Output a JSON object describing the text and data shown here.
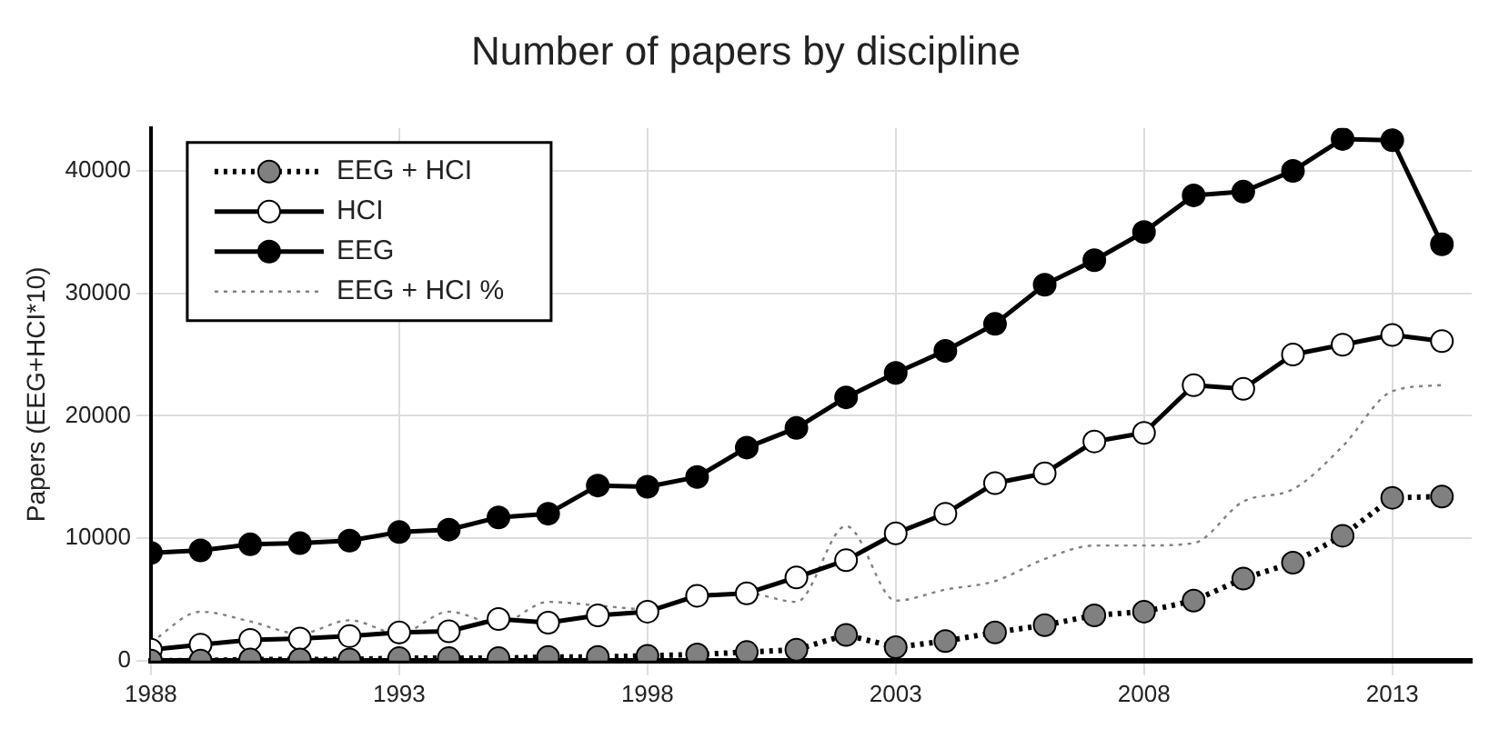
{
  "chart_data": {
    "type": "line",
    "title": "Number of papers by discipline",
    "ylabel": "Papers (EEG+HCI*10)",
    "x": [
      1988,
      1989,
      1990,
      1991,
      1992,
      1993,
      1994,
      1995,
      1996,
      1997,
      1998,
      1999,
      2000,
      2001,
      2002,
      2003,
      2004,
      2005,
      2006,
      2007,
      2008,
      2009,
      2010,
      2011,
      2012,
      2013,
      2014
    ],
    "series": [
      {
        "name": "EEG + HCI",
        "color": "#808080",
        "marker": "circle",
        "line_style": "dotted",
        "values": [
          0,
          0,
          100,
          100,
          100,
          200,
          200,
          200,
          300,
          300,
          400,
          500,
          700,
          900,
          2100,
          1100,
          1600,
          2300,
          2900,
          3700,
          4000,
          4900,
          6700,
          8000,
          10200,
          13300,
          13400
        ]
      },
      {
        "name": "HCI",
        "color": "#ffffff",
        "marker": "circle",
        "line_style": "solid",
        "values": [
          900,
          1300,
          1700,
          1800,
          2000,
          2300,
          2400,
          3400,
          3100,
          3700,
          4000,
          5300,
          5500,
          6800,
          8200,
          10400,
          12000,
          14500,
          15300,
          17900,
          18600,
          22500,
          22200,
          25000,
          25800,
          26600,
          26100
        ]
      },
      {
        "name": "EEG",
        "color": "#000000",
        "marker": "circle",
        "line_style": "solid",
        "values": [
          8800,
          9000,
          9500,
          9600,
          9800,
          10500,
          10700,
          11700,
          12000,
          14300,
          14200,
          15000,
          17400,
          19000,
          21500,
          23500,
          25300,
          27500,
          30700,
          32700,
          35000,
          38000,
          38300,
          40000,
          42600,
          42500,
          34000
        ]
      },
      {
        "name": "EEG + HCI %",
        "color": "#808080",
        "marker": "none",
        "line_style": "dotted",
        "values": [
          1500,
          4000,
          3200,
          2200,
          3300,
          2200,
          4000,
          3000,
          4800,
          4500,
          4200,
          5300,
          5500,
          4800,
          11000,
          4900,
          5800,
          6500,
          8300,
          9400,
          9400,
          9600,
          13000,
          14000,
          17500,
          22000,
          22500
        ]
      }
    ],
    "xlim": [
      1988,
      2014.6
    ],
    "xticks": [
      1988,
      1993,
      1998,
      2003,
      2008,
      2013
    ],
    "ylim": [
      0,
      43500
    ],
    "yticks": [
      0,
      10000,
      20000,
      30000,
      40000
    ],
    "grid": true,
    "legend": "top left"
  }
}
